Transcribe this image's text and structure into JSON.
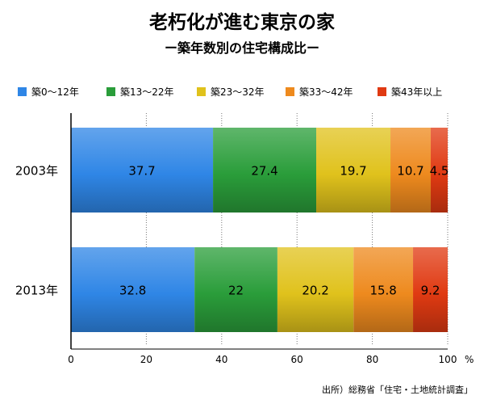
{
  "chart_data": {
    "type": "bar",
    "orientation": "horizontal",
    "stacked": true,
    "title": "老朽化が進む東京の家",
    "subtitle": "ー築年数別の住宅構成比ー",
    "categories": [
      "2003年",
      "2013年"
    ],
    "series": [
      {
        "name": "築0〜12年",
        "values": [
          37.7,
          32.8
        ],
        "color": "#2f86e6",
        "labels": [
          "37.7",
          "32.8"
        ]
      },
      {
        "name": "築13〜22年",
        "values": [
          27.4,
          22
        ],
        "color": "#2a9d3a",
        "labels": [
          "27.4",
          "22"
        ]
      },
      {
        "name": "築23〜32年",
        "values": [
          19.7,
          20.2
        ],
        "color": "#e0c21c",
        "labels": [
          "19.7",
          "20.2"
        ]
      },
      {
        "name": "築33〜42年",
        "values": [
          10.7,
          15.8
        ],
        "color": "#ee8a1e",
        "labels": [
          "10.7",
          "15.8"
        ]
      },
      {
        "name": "築43年以上",
        "values": [
          4.5,
          9.2
        ],
        "color": "#e03a12",
        "labels": [
          "4.5",
          "9.2"
        ]
      }
    ],
    "xlim": [
      0,
      100
    ],
    "xticks": [
      0,
      20,
      40,
      60,
      80,
      100
    ],
    "xtick_labels": [
      "0",
      "20",
      "40",
      "60",
      "80",
      "100"
    ],
    "x_unit": "%",
    "grid": "vertical dotted",
    "legend": "top",
    "source": "出所）総務省「住宅・土地統計調査」"
  }
}
